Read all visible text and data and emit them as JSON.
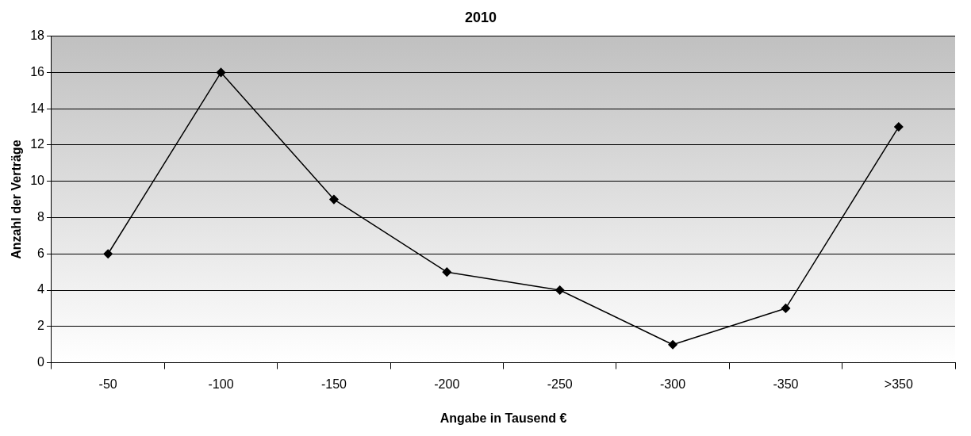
{
  "chart_data": {
    "type": "line",
    "title": "2010",
    "xlabel": "Angabe in Tausend €",
    "ylabel": "Anzahl der Verträge",
    "categories": [
      "-50",
      "-100",
      "-150",
      "-200",
      "-250",
      "-300",
      "-350",
      ">350"
    ],
    "series": [
      {
        "color": "#000000",
        "values": [
          6,
          16,
          9,
          5,
          4,
          1,
          3,
          13
        ]
      }
    ],
    "ylim": [
      0,
      18
    ],
    "yticks": [
      0,
      2,
      4,
      6,
      8,
      10,
      12,
      14,
      16,
      18
    ],
    "grid": "y",
    "legend": false,
    "marker": "diamond",
    "line_style": "solid"
  }
}
